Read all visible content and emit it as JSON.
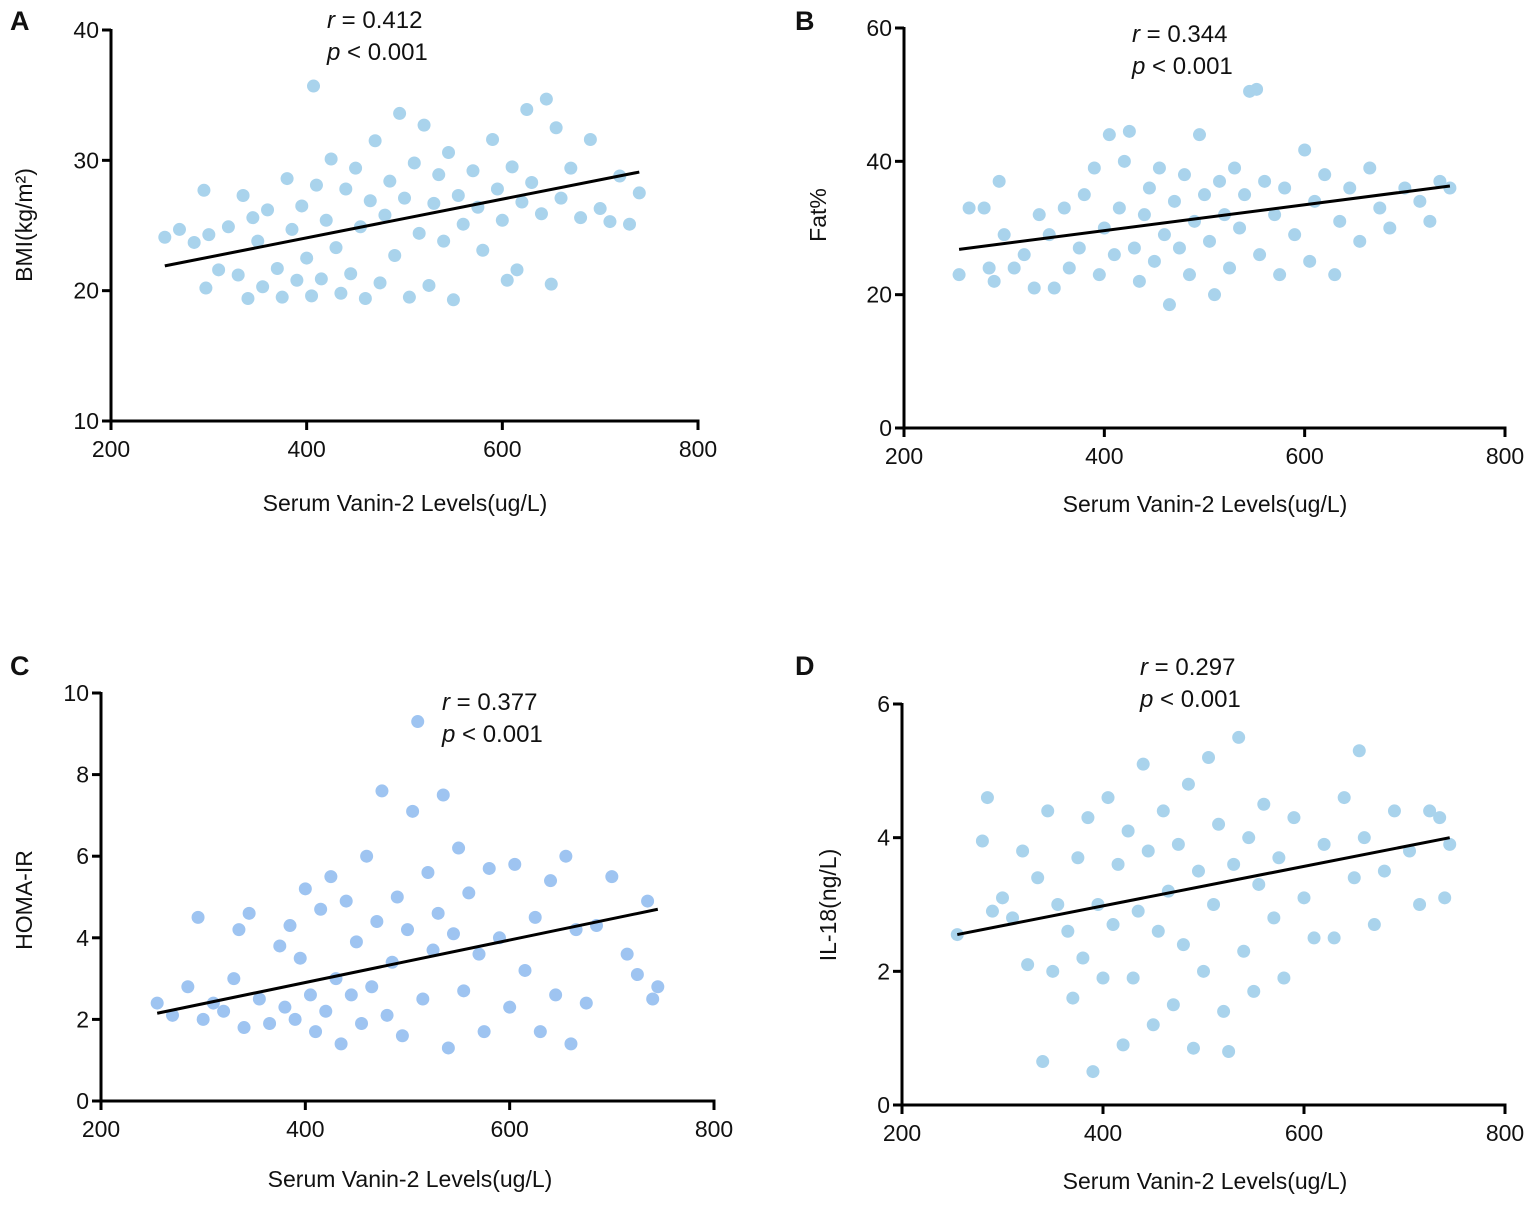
{
  "chart_data": [
    {
      "type": "scatter",
      "panel": "A",
      "ylabel": "BMI(kg/m²)",
      "xlabel": "Serum Vanin-2 Levels(ug/L)",
      "xlim": [
        200,
        800
      ],
      "ylim": [
        10,
        40
      ],
      "xticks": [
        "200",
        "400",
        "600",
        "800"
      ],
      "yticks": [
        "10",
        "20",
        "30",
        "40"
      ],
      "annotation": {
        "r_symbol": "r",
        "r_text": " = 0.412",
        "p_symbol": "p",
        "p_text": " < 0.001"
      },
      "color": "#a9d3ec",
      "fit_line": [
        [
          255,
          21.9
        ],
        [
          740,
          29.1
        ]
      ],
      "points": [
        [
          255,
          24.1
        ],
        [
          270,
          24.7
        ],
        [
          285,
          23.7
        ],
        [
          295,
          27.7
        ],
        [
          297,
          20.2
        ],
        [
          300,
          24.3
        ],
        [
          310,
          21.6
        ],
        [
          320,
          24.9
        ],
        [
          330,
          21.2
        ],
        [
          335,
          27.3
        ],
        [
          340,
          19.4
        ],
        [
          345,
          25.6
        ],
        [
          350,
          23.8
        ],
        [
          355,
          20.3
        ],
        [
          360,
          26.2
        ],
        [
          370,
          21.7
        ],
        [
          375,
          19.5
        ],
        [
          380,
          28.6
        ],
        [
          385,
          24.7
        ],
        [
          390,
          20.8
        ],
        [
          395,
          26.5
        ],
        [
          400,
          22.5
        ],
        [
          405,
          19.6
        ],
        [
          407,
          35.7
        ],
        [
          410,
          28.1
        ],
        [
          415,
          20.9
        ],
        [
          420,
          25.4
        ],
        [
          425,
          30.1
        ],
        [
          430,
          23.3
        ],
        [
          435,
          19.8
        ],
        [
          440,
          27.8
        ],
        [
          445,
          21.3
        ],
        [
          450,
          29.4
        ],
        [
          455,
          24.9
        ],
        [
          460,
          19.4
        ],
        [
          465,
          26.9
        ],
        [
          470,
          31.5
        ],
        [
          475,
          20.6
        ],
        [
          480,
          25.8
        ],
        [
          485,
          28.4
        ],
        [
          490,
          22.7
        ],
        [
          495,
          33.6
        ],
        [
          500,
          27.1
        ],
        [
          505,
          19.5
        ],
        [
          510,
          29.8
        ],
        [
          515,
          24.4
        ],
        [
          520,
          32.7
        ],
        [
          525,
          20.4
        ],
        [
          530,
          26.7
        ],
        [
          535,
          28.9
        ],
        [
          540,
          23.8
        ],
        [
          545,
          30.6
        ],
        [
          550,
          19.3
        ],
        [
          555,
          27.3
        ],
        [
          560,
          25.1
        ],
        [
          570,
          29.2
        ],
        [
          575,
          26.4
        ],
        [
          580,
          23.1
        ],
        [
          590,
          31.6
        ],
        [
          595,
          27.8
        ],
        [
          600,
          25.4
        ],
        [
          605,
          20.8
        ],
        [
          610,
          29.5
        ],
        [
          615,
          21.6
        ],
        [
          620,
          26.8
        ],
        [
          625,
          33.9
        ],
        [
          630,
          28.3
        ],
        [
          640,
          25.9
        ],
        [
          645,
          34.7
        ],
        [
          650,
          20.5
        ],
        [
          655,
          32.5
        ],
        [
          660,
          27.1
        ],
        [
          670,
          29.4
        ],
        [
          680,
          25.6
        ],
        [
          690,
          31.6
        ],
        [
          700,
          26.3
        ],
        [
          710,
          25.3
        ],
        [
          720,
          28.8
        ],
        [
          730,
          25.1
        ],
        [
          740,
          27.5
        ]
      ]
    },
    {
      "type": "scatter",
      "panel": "B",
      "ylabel": "Fat%",
      "xlabel": "Serum Vanin-2 Levels(ug/L)",
      "xlim": [
        200,
        800
      ],
      "ylim": [
        0,
        60
      ],
      "xticks": [
        "200",
        "400",
        "600",
        "800"
      ],
      "yticks": [
        "0",
        "20",
        "40",
        "60"
      ],
      "annotation": {
        "r_symbol": "r",
        "r_text": " = 0.344",
        "p_symbol": "p",
        "p_text": " < 0.001"
      },
      "color": "#a9d3ec",
      "fit_line": [
        [
          255,
          26.8
        ],
        [
          745,
          36.3
        ]
      ],
      "points": [
        [
          255,
          23
        ],
        [
          265,
          33
        ],
        [
          280,
          33
        ],
        [
          285,
          24
        ],
        [
          290,
          22
        ],
        [
          295,
          37
        ],
        [
          300,
          29
        ],
        [
          310,
          24
        ],
        [
          320,
          26
        ],
        [
          330,
          21
        ],
        [
          335,
          32
        ],
        [
          345,
          29
        ],
        [
          350,
          21
        ],
        [
          360,
          33
        ],
        [
          365,
          24
        ],
        [
          375,
          27
        ],
        [
          380,
          35
        ],
        [
          390,
          39
        ],
        [
          395,
          23
        ],
        [
          400,
          30
        ],
        [
          405,
          44
        ],
        [
          410,
          26
        ],
        [
          415,
          33
        ],
        [
          420,
          40
        ],
        [
          425,
          44.5
        ],
        [
          430,
          27
        ],
        [
          435,
          22
        ],
        [
          440,
          32
        ],
        [
          445,
          36
        ],
        [
          450,
          25
        ],
        [
          455,
          39
        ],
        [
          460,
          29
        ],
        [
          465,
          18.5
        ],
        [
          470,
          34
        ],
        [
          475,
          27
        ],
        [
          480,
          38
        ],
        [
          485,
          23
        ],
        [
          490,
          31
        ],
        [
          495,
          44
        ],
        [
          500,
          35
        ],
        [
          505,
          28
        ],
        [
          510,
          20
        ],
        [
          515,
          37
        ],
        [
          520,
          32
        ],
        [
          525,
          24
        ],
        [
          530,
          39
        ],
        [
          535,
          30
        ],
        [
          540,
          35
        ],
        [
          545,
          50.5
        ],
        [
          552,
          50.8
        ],
        [
          555,
          26
        ],
        [
          560,
          37
        ],
        [
          570,
          32
        ],
        [
          575,
          23
        ],
        [
          580,
          36
        ],
        [
          590,
          29
        ],
        [
          600,
          41.7
        ],
        [
          605,
          25
        ],
        [
          610,
          34
        ],
        [
          620,
          38
        ],
        [
          630,
          23
        ],
        [
          635,
          31
        ],
        [
          645,
          36
        ],
        [
          655,
          28
        ],
        [
          665,
          39
        ],
        [
          675,
          33
        ],
        [
          685,
          30
        ],
        [
          700,
          36
        ],
        [
          715,
          34
        ],
        [
          725,
          31
        ],
        [
          735,
          37
        ],
        [
          745,
          36
        ]
      ]
    },
    {
      "type": "scatter",
      "panel": "C",
      "ylabel": "HOMA-IR",
      "xlabel": "Serum Vanin-2 Levels(ug/L)",
      "xlim": [
        200,
        800
      ],
      "ylim": [
        0,
        10
      ],
      "xticks": [
        "200",
        "400",
        "600",
        "800"
      ],
      "yticks": [
        "0",
        "2",
        "4",
        "6",
        "8",
        "10"
      ],
      "annotation": {
        "r_symbol": "r",
        "r_text": " = 0.377",
        "p_symbol": "p",
        "p_text": " < 0.001"
      },
      "color": "#9ec4f1",
      "fit_line": [
        [
          255,
          2.15
        ],
        [
          745,
          4.7
        ]
      ],
      "points": [
        [
          255,
          2.4
        ],
        [
          270,
          2.1
        ],
        [
          285,
          2.8
        ],
        [
          295,
          4.5
        ],
        [
          300,
          2.0
        ],
        [
          310,
          2.4
        ],
        [
          320,
          2.2
        ],
        [
          330,
          3.0
        ],
        [
          335,
          4.2
        ],
        [
          340,
          1.8
        ],
        [
          345,
          4.6
        ],
        [
          355,
          2.5
        ],
        [
          365,
          1.9
        ],
        [
          375,
          3.8
        ],
        [
          380,
          2.3
        ],
        [
          385,
          4.3
        ],
        [
          390,
          2.0
        ],
        [
          395,
          3.5
        ],
        [
          400,
          5.2
        ],
        [
          405,
          2.6
        ],
        [
          410,
          1.7
        ],
        [
          415,
          4.7
        ],
        [
          420,
          2.2
        ],
        [
          425,
          5.5
        ],
        [
          430,
          3.0
        ],
        [
          435,
          1.4
        ],
        [
          440,
          4.9
        ],
        [
          445,
          2.6
        ],
        [
          450,
          3.9
        ],
        [
          455,
          1.9
        ],
        [
          460,
          6.0
        ],
        [
          465,
          2.8
        ],
        [
          470,
          4.4
        ],
        [
          475,
          7.6
        ],
        [
          480,
          2.1
        ],
        [
          485,
          3.4
        ],
        [
          490,
          5.0
        ],
        [
          495,
          1.6
        ],
        [
          500,
          4.2
        ],
        [
          505,
          7.1
        ],
        [
          510,
          9.3
        ],
        [
          515,
          2.5
        ],
        [
          520,
          5.6
        ],
        [
          525,
          3.7
        ],
        [
          530,
          4.6
        ],
        [
          535,
          7.5
        ],
        [
          540,
          1.3
        ],
        [
          545,
          4.1
        ],
        [
          550,
          6.2
        ],
        [
          555,
          2.7
        ],
        [
          560,
          5.1
        ],
        [
          570,
          3.6
        ],
        [
          575,
          1.7
        ],
        [
          580,
          5.7
        ],
        [
          590,
          4.0
        ],
        [
          600,
          2.3
        ],
        [
          605,
          5.8
        ],
        [
          615,
          3.2
        ],
        [
          625,
          4.5
        ],
        [
          630,
          1.7
        ],
        [
          640,
          5.4
        ],
        [
          645,
          2.6
        ],
        [
          655,
          6.0
        ],
        [
          660,
          1.4
        ],
        [
          665,
          4.2
        ],
        [
          675,
          2.4
        ],
        [
          685,
          4.3
        ],
        [
          700,
          5.5
        ],
        [
          715,
          3.6
        ],
        [
          725,
          3.1
        ],
        [
          735,
          4.9
        ],
        [
          740,
          2.5
        ],
        [
          745,
          2.8
        ]
      ]
    },
    {
      "type": "scatter",
      "panel": "D",
      "ylabel": "IL-18(ng/L)",
      "xlabel": "Serum Vanin-2 Levels(ug/L)",
      "xlim": [
        200,
        800
      ],
      "ylim": [
        0,
        6
      ],
      "xticks": [
        "200",
        "400",
        "600",
        "800"
      ],
      "yticks": [
        "0",
        "2",
        "4",
        "6"
      ],
      "annotation": {
        "r_symbol": "r",
        "r_text": " = 0.297",
        "p_symbol": "p",
        "p_text": " < 0.001"
      },
      "color": "#a9d3ec",
      "fit_line": [
        [
          255,
          2.55
        ],
        [
          745,
          4.0
        ]
      ],
      "points": [
        [
          255,
          2.55
        ],
        [
          280,
          3.95
        ],
        [
          285,
          4.6
        ],
        [
          290,
          2.9
        ],
        [
          300,
          3.1
        ],
        [
          310,
          2.8
        ],
        [
          320,
          3.8
        ],
        [
          325,
          2.1
        ],
        [
          335,
          3.4
        ],
        [
          340,
          0.65
        ],
        [
          345,
          4.4
        ],
        [
          350,
          2.0
        ],
        [
          355,
          3.0
        ],
        [
          365,
          2.6
        ],
        [
          370,
          1.6
        ],
        [
          375,
          3.7
        ],
        [
          380,
          2.2
        ],
        [
          385,
          4.3
        ],
        [
          390,
          0.5
        ],
        [
          395,
          3.0
        ],
        [
          400,
          1.9
        ],
        [
          405,
          4.6
        ],
        [
          410,
          2.7
        ],
        [
          415,
          3.6
        ],
        [
          420,
          0.9
        ],
        [
          425,
          4.1
        ],
        [
          430,
          1.9
        ],
        [
          435,
          2.9
        ],
        [
          440,
          5.1
        ],
        [
          445,
          3.8
        ],
        [
          450,
          1.2
        ],
        [
          455,
          2.6
        ],
        [
          460,
          4.4
        ],
        [
          465,
          3.2
        ],
        [
          470,
          1.5
        ],
        [
          475,
          3.9
        ],
        [
          480,
          2.4
        ],
        [
          485,
          4.8
        ],
        [
          490,
          0.85
        ],
        [
          495,
          3.5
        ],
        [
          500,
          2.0
        ],
        [
          505,
          5.2
        ],
        [
          510,
          3.0
        ],
        [
          515,
          4.2
        ],
        [
          520,
          1.4
        ],
        [
          525,
          0.8
        ],
        [
          530,
          3.6
        ],
        [
          535,
          5.5
        ],
        [
          540,
          2.3
        ],
        [
          545,
          4.0
        ],
        [
          550,
          1.7
        ],
        [
          555,
          3.3
        ],
        [
          560,
          4.5
        ],
        [
          570,
          2.8
        ],
        [
          575,
          3.7
        ],
        [
          580,
          1.9
        ],
        [
          590,
          4.3
        ],
        [
          600,
          3.1
        ],
        [
          610,
          2.5
        ],
        [
          620,
          3.9
        ],
        [
          630,
          2.5
        ],
        [
          640,
          4.6
        ],
        [
          650,
          3.4
        ],
        [
          655,
          5.3
        ],
        [
          660,
          4.0
        ],
        [
          670,
          2.7
        ],
        [
          680,
          3.5
        ],
        [
          690,
          4.4
        ],
        [
          705,
          3.8
        ],
        [
          715,
          3.0
        ],
        [
          725,
          4.4
        ],
        [
          735,
          4.3
        ],
        [
          740,
          3.1
        ],
        [
          745,
          3.9
        ]
      ]
    }
  ]
}
